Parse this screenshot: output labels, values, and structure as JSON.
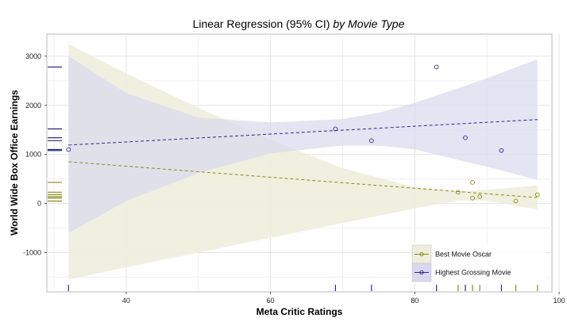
{
  "chart_data": {
    "type": "scatter",
    "title": "Linear Regression (95% CI)",
    "title_facet": "by Movie Type",
    "xlabel": "Meta Critic Ratings",
    "ylabel": "World Wide Box Office Earnings",
    "xlim": [
      29,
      99
    ],
    "ylim": [
      -1800,
      3450
    ],
    "xticks": [
      40,
      60,
      80,
      100
    ],
    "yticks": [
      -1000,
      0,
      1000,
      2000,
      3000
    ],
    "grid": true,
    "legend_position": "bottom-right",
    "series": [
      {
        "name": "Best Movie Oscar",
        "color": "#8b8b1a",
        "band_color": "#eeeedd",
        "points": [
          {
            "x": 86,
            "y": 230
          },
          {
            "x": 88,
            "y": 430
          },
          {
            "x": 88,
            "y": 110
          },
          {
            "x": 89,
            "y": 140
          },
          {
            "x": 94,
            "y": 50
          },
          {
            "x": 97,
            "y": 180
          }
        ],
        "fit": {
          "x": [
            32,
            97
          ],
          "y": [
            850,
            120
          ]
        },
        "ci": {
          "x": [
            32,
            40,
            50,
            60,
            70,
            80,
            86,
            90,
            97
          ],
          "lower": [
            -1550,
            -1300,
            -1000,
            -700,
            -400,
            -100,
            60,
            60,
            -120
          ],
          "upper": [
            3250,
            2650,
            1950,
            1300,
            720,
            330,
            250,
            280,
            370
          ]
        },
        "rug_y": [
          430,
          230,
          180,
          140,
          110,
          50
        ]
      },
      {
        "name": "Highest Grossing Movie",
        "color": "#2a2a8c",
        "band_color": "#d9d8ee",
        "points": [
          {
            "x": 32,
            "y": 1100
          },
          {
            "x": 69,
            "y": 1520
          },
          {
            "x": 74,
            "y": 1280
          },
          {
            "x": 83,
            "y": 2780
          },
          {
            "x": 87,
            "y": 1340
          },
          {
            "x": 92,
            "y": 1080
          }
        ],
        "fit": {
          "x": [
            32,
            97
          ],
          "y": [
            1190,
            1710
          ]
        },
        "ci": {
          "x": [
            32,
            40,
            50,
            60,
            70,
            75,
            80,
            90,
            97
          ],
          "lower": [
            -600,
            50,
            620,
            1020,
            1180,
            1180,
            1100,
            750,
            480
          ],
          "upper": [
            3000,
            2250,
            1750,
            1650,
            1720,
            1850,
            2050,
            2550,
            2940
          ]
        },
        "rug_y": [
          2780,
          1520,
          1340,
          1280,
          1100,
          1080
        ]
      }
    ],
    "rug_x": [
      {
        "x": 32,
        "series": "Highest Grossing Movie"
      },
      {
        "x": 69,
        "series": "Highest Grossing Movie"
      },
      {
        "x": 74,
        "series": "Highest Grossing Movie"
      },
      {
        "x": 83,
        "series": "Highest Grossing Movie"
      },
      {
        "x": 86,
        "series": "Best Movie Oscar"
      },
      {
        "x": 87,
        "series": "Highest Grossing Movie"
      },
      {
        "x": 88,
        "series": "Best Movie Oscar"
      },
      {
        "x": 89,
        "series": "Best Movie Oscar"
      },
      {
        "x": 92,
        "series": "Highest Grossing Movie"
      },
      {
        "x": 94,
        "series": "Best Movie Oscar"
      },
      {
        "x": 97,
        "series": "Best Movie Oscar"
      }
    ]
  }
}
